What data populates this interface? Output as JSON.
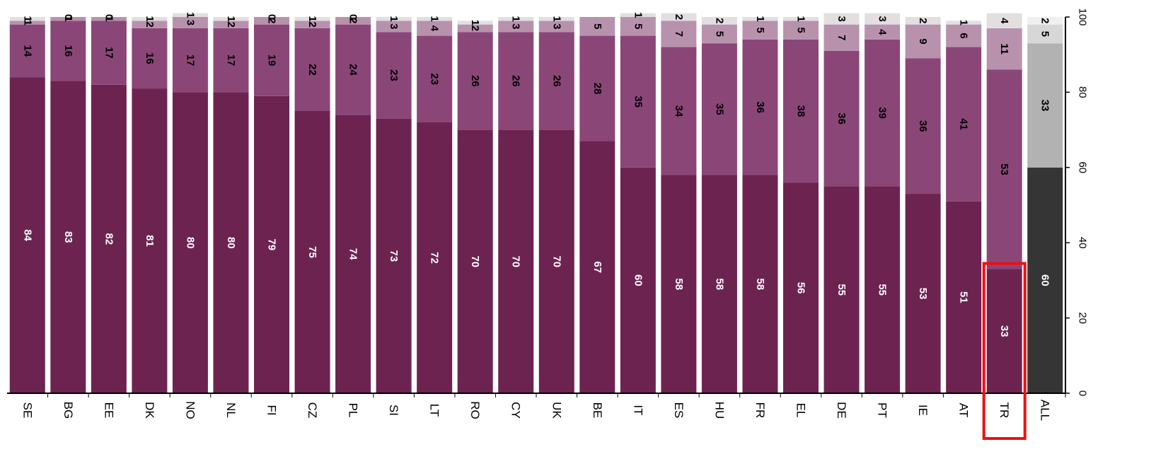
{
  "chart_data": {
    "type": "bar",
    "stacked": true,
    "orientation": "vertical",
    "categories": [
      "SE",
      "BG",
      "EE",
      "DK",
      "NO",
      "NL",
      "FI",
      "CZ",
      "PL",
      "SI",
      "LT",
      "RO",
      "CY",
      "UK",
      "BE",
      "IT",
      "ES",
      "HU",
      "FR",
      "EL",
      "DE",
      "PT",
      "IE",
      "AT",
      "TR",
      "ALL"
    ],
    "series": [
      {
        "values": [
          84,
          83,
          82,
          81,
          80,
          80,
          79,
          75,
          74,
          73,
          72,
          70,
          70,
          70,
          67,
          60,
          58,
          58,
          58,
          56,
          55,
          55,
          53,
          51,
          33,
          60
        ]
      },
      {
        "values": [
          14,
          16,
          17,
          16,
          17,
          17,
          19,
          22,
          24,
          23,
          23,
          26,
          26,
          26,
          28,
          35,
          34,
          35,
          36,
          38,
          36,
          39,
          36,
          41,
          53,
          33
        ]
      },
      {
        "values": [
          1,
          1,
          1,
          2,
          3,
          2,
          2,
          2,
          2,
          3,
          4,
          2,
          3,
          3,
          5,
          5,
          7,
          5,
          5,
          5,
          7,
          4,
          9,
          6,
          11,
          5
        ]
      },
      {
        "values": [
          1,
          0,
          0,
          1,
          1,
          1,
          0,
          1,
          0,
          1,
          1,
          1,
          1,
          1,
          0,
          1,
          2,
          2,
          1,
          1,
          3,
          3,
          2,
          1,
          4,
          2
        ]
      }
    ],
    "segment_labels": [
      [
        "84",
        "83",
        "82",
        "81",
        "80",
        "80",
        "79",
        "75",
        "74",
        "73",
        "72",
        "70",
        "70",
        "70",
        "67",
        "60",
        "58",
        "58",
        "58",
        "56",
        "55",
        "55",
        "53",
        "51",
        "33",
        "60"
      ],
      [
        "14",
        "16",
        "17",
        "16",
        "17",
        "17",
        "19",
        "22",
        "24",
        "23",
        "23",
        "26",
        "26",
        "26",
        "28",
        "35",
        "34",
        "35",
        "36",
        "38",
        "36",
        "39",
        "36",
        "41",
        "53",
        "33"
      ],
      [
        "1",
        "1",
        "1",
        "2",
        "3",
        "2",
        "2",
        "2",
        "2",
        "3",
        "4",
        "2",
        "3",
        "3",
        "5",
        "5",
        "7",
        "5",
        "5",
        "5",
        "7",
        "4",
        "9",
        "6",
        "11",
        "5"
      ],
      [
        "1",
        "0",
        "0",
        "1",
        "1",
        "1",
        "0",
        "1",
        "0",
        "1",
        "1",
        "1",
        "1",
        "1",
        "",
        "1",
        "2",
        "2",
        "1",
        "1",
        "3",
        "3",
        "2",
        "1",
        "4",
        "2"
      ]
    ],
    "ylim": [
      0,
      100
    ],
    "yticks": [
      "0",
      "20",
      "40",
      "60",
      "80",
      "100"
    ],
    "y_axis_side": "right",
    "grid": false,
    "legend": "none",
    "highlight_category": "TR",
    "colors": {
      "country": [
        "#6d2350",
        "#8b4678",
        "#b892ad",
        "#e3dfe1"
      ],
      "total": [
        "#353535",
        "#b2b2b2",
        "#d7d7d7",
        "#f0f0f0"
      ],
      "label_light": "#ffffff",
      "label_dark": "#000000",
      "highlight_box": "#ee1111",
      "axis": "#000000"
    }
  }
}
